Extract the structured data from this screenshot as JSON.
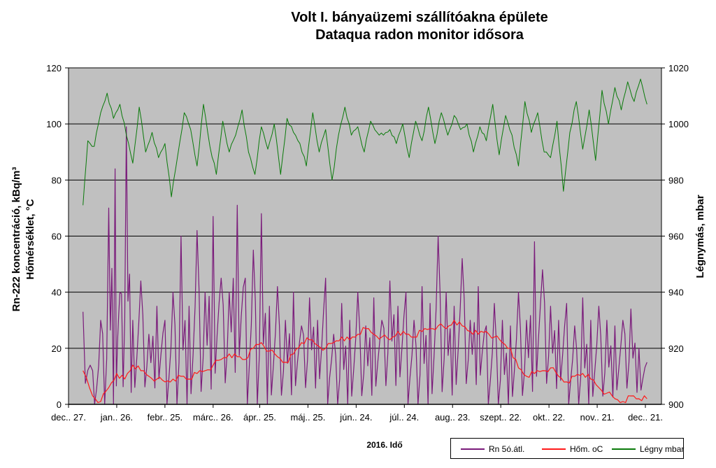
{
  "chart_data": {
    "type": "line",
    "title_line1": "Volt I. bányaüzemi szállítóakna épülete",
    "title_line2": "Dataqua radon monitor idősora",
    "xlabel": "2016. Idő",
    "ylabel_left_line1": "Rn-222 koncentráció, kBq/m³",
    "ylabel_left_line2": "Hőmérséklet, °C",
    "ylabel_right": "Légnymás, mbar",
    "x_tick_labels": [
      "dec.. 27.",
      "jan.. 26.",
      "febr.. 25.",
      "márc.. 26.",
      "ápr.. 25.",
      "máj.. 25.",
      "jún.. 24.",
      "júl.. 24.",
      "aug.. 23.",
      "szept.. 22.",
      "okt.. 22.",
      "nov.. 21.",
      "dec.. 21."
    ],
    "x_range": [
      "2015-12-27",
      "2016-12-31"
    ],
    "left_axis": {
      "ylim": [
        0,
        120
      ],
      "ticks": [
        0,
        20,
        40,
        60,
        80,
        100,
        120
      ]
    },
    "right_axis": {
      "ylim": [
        900,
        1020
      ],
      "ticks": [
        900,
        920,
        940,
        960,
        980,
        1000,
        1020
      ]
    },
    "grid": "horizontal",
    "legend": "bottom-right",
    "colors": {
      "plot_bg": "#c0c0c0",
      "radon": "#7a1a7a",
      "temperature": "#ff1a1a",
      "pressure": "#0a7a0a"
    },
    "series": [
      {
        "name": "Rn 5ó.átl.",
        "axis": "left",
        "x_days": [
          9,
          15,
          20,
          25,
          29,
          32,
          36,
          40,
          45,
          50,
          55,
          60,
          65,
          70,
          75,
          80,
          85,
          90,
          95,
          100,
          105,
          110,
          115,
          120,
          125,
          130,
          135,
          140,
          145,
          150,
          155,
          160,
          165,
          170,
          175,
          180,
          185,
          190,
          195,
          200,
          205,
          210,
          215,
          220,
          225,
          230,
          235,
          240,
          245,
          250,
          255,
          260,
          265,
          270,
          275,
          280,
          285,
          290,
          295,
          300,
          305,
          310,
          315,
          320,
          325,
          330,
          335,
          340,
          345,
          350,
          355,
          360
        ],
        "values": [
          33,
          12,
          30,
          70,
          84,
          40,
          99,
          30,
          44,
          25,
          35,
          30,
          40,
          60,
          35,
          62,
          40,
          67,
          45,
          40,
          71,
          45,
          55,
          68,
          35,
          42,
          30,
          40,
          28,
          38,
          30,
          45,
          25,
          36,
          30,
          40,
          28,
          38,
          30,
          44,
          35,
          40,
          30,
          42,
          36,
          60,
          40,
          35,
          52,
          30,
          42,
          28,
          36,
          30,
          28,
          40,
          30,
          58,
          48,
          35,
          30,
          36,
          28,
          38,
          30,
          35,
          30,
          28,
          30,
          34,
          20,
          15
        ]
      },
      {
        "name": "Hőm. oC",
        "axis": "left",
        "x_days": [
          9,
          15,
          20,
          25,
          30,
          35,
          40,
          45,
          50,
          55,
          60,
          65,
          70,
          75,
          80,
          85,
          90,
          95,
          100,
          105,
          110,
          115,
          120,
          125,
          130,
          135,
          140,
          145,
          150,
          155,
          160,
          165,
          170,
          175,
          180,
          185,
          190,
          195,
          200,
          205,
          210,
          215,
          220,
          225,
          230,
          235,
          240,
          245,
          250,
          255,
          260,
          265,
          270,
          275,
          280,
          285,
          290,
          295,
          300,
          305,
          310,
          315,
          320,
          325,
          330,
          335,
          340,
          345,
          350,
          355,
          360
        ],
        "values": [
          12,
          3,
          1,
          6,
          11,
          9,
          14,
          12,
          10,
          9,
          8,
          9,
          10,
          9,
          11,
          12,
          14,
          16,
          18,
          17,
          16,
          20,
          22,
          19,
          17,
          15,
          18,
          22,
          23,
          21,
          20,
          22,
          24,
          23,
          25,
          27,
          25,
          24,
          23,
          26,
          25,
          24,
          26,
          27,
          28,
          27,
          30,
          28,
          26,
          25,
          26,
          24,
          22,
          20,
          13,
          10,
          11,
          12,
          13,
          10,
          8,
          10,
          11,
          9,
          6,
          4,
          2,
          1,
          3,
          2,
          2
        ]
      },
      {
        "name": "Légny mbar",
        "axis": "right",
        "x_days": [
          9,
          12,
          16,
          20,
          24,
          28,
          32,
          36,
          40,
          44,
          48,
          52,
          56,
          60,
          64,
          68,
          72,
          76,
          80,
          84,
          88,
          92,
          96,
          100,
          104,
          108,
          112,
          116,
          120,
          124,
          128,
          132,
          136,
          140,
          144,
          148,
          152,
          156,
          160,
          164,
          168,
          172,
          176,
          180,
          184,
          188,
          192,
          196,
          200,
          204,
          208,
          212,
          216,
          220,
          224,
          228,
          232,
          236,
          240,
          244,
          248,
          252,
          256,
          260,
          264,
          268,
          272,
          276,
          280,
          284,
          288,
          292,
          296,
          300,
          304,
          308,
          312,
          316,
          320,
          324,
          328,
          332,
          336,
          340,
          344,
          348,
          352,
          356,
          360
        ],
        "values": [
          971,
          994,
          992,
          1004,
          1011,
          1002,
          1007,
          996,
          986,
          1006,
          990,
          997,
          988,
          993,
          974,
          989,
          1004,
          998,
          985,
          1007,
          992,
          982,
          1001,
          990,
          996,
          1005,
          990,
          982,
          999,
          991,
          1000,
          982,
          1002,
          997,
          993,
          985,
          1004,
          990,
          998,
          980,
          996,
          1006,
          996,
          999,
          990,
          1001,
          997,
          996,
          998,
          993,
          1000,
          988,
          1001,
          994,
          1006,
          993,
          1004,
          996,
          1003,
          998,
          1000,
          990,
          999,
          994,
          1007,
          989,
          1003,
          996,
          985,
          1008,
          997,
          1004,
          990,
          988,
          1001,
          976,
          997,
          1008,
          991,
          1005,
          987,
          1012,
          1000,
          1013,
          1005,
          1015,
          1008,
          1016,
          1007
        ]
      }
    ]
  }
}
